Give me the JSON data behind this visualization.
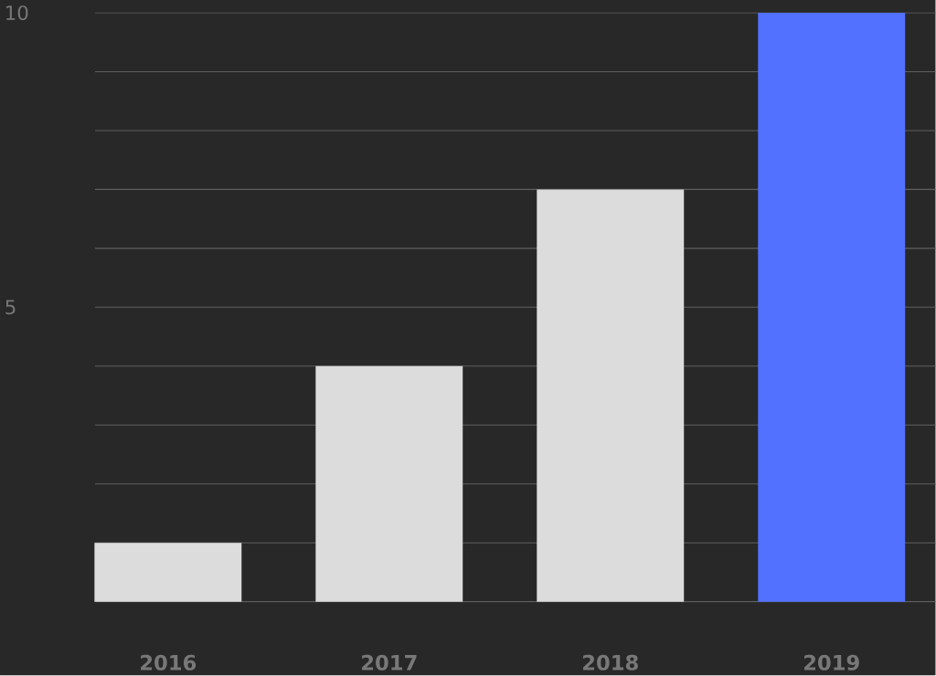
{
  "chart_data": {
    "type": "bar",
    "categories": [
      "2016",
      "2017",
      "2018",
      "2019"
    ],
    "values": [
      1,
      4,
      7,
      10
    ],
    "colors": [
      "#dcdcdc",
      "#dcdcdc",
      "#dcdcdc",
      "#5271ff"
    ],
    "ylim": [
      0,
      10
    ],
    "yticks": [
      {
        "value": 0,
        "label": null
      },
      {
        "value": 1,
        "label": null
      },
      {
        "value": 2,
        "label": null
      },
      {
        "value": 3,
        "label": null
      },
      {
        "value": 4,
        "label": null
      },
      5,
      {
        "value": 6,
        "label": null
      },
      {
        "value": 7,
        "label": null
      },
      {
        "value": 8,
        "label": null
      },
      {
        "value": 9,
        "label": null
      },
      10
    ],
    "grid": "y"
  }
}
